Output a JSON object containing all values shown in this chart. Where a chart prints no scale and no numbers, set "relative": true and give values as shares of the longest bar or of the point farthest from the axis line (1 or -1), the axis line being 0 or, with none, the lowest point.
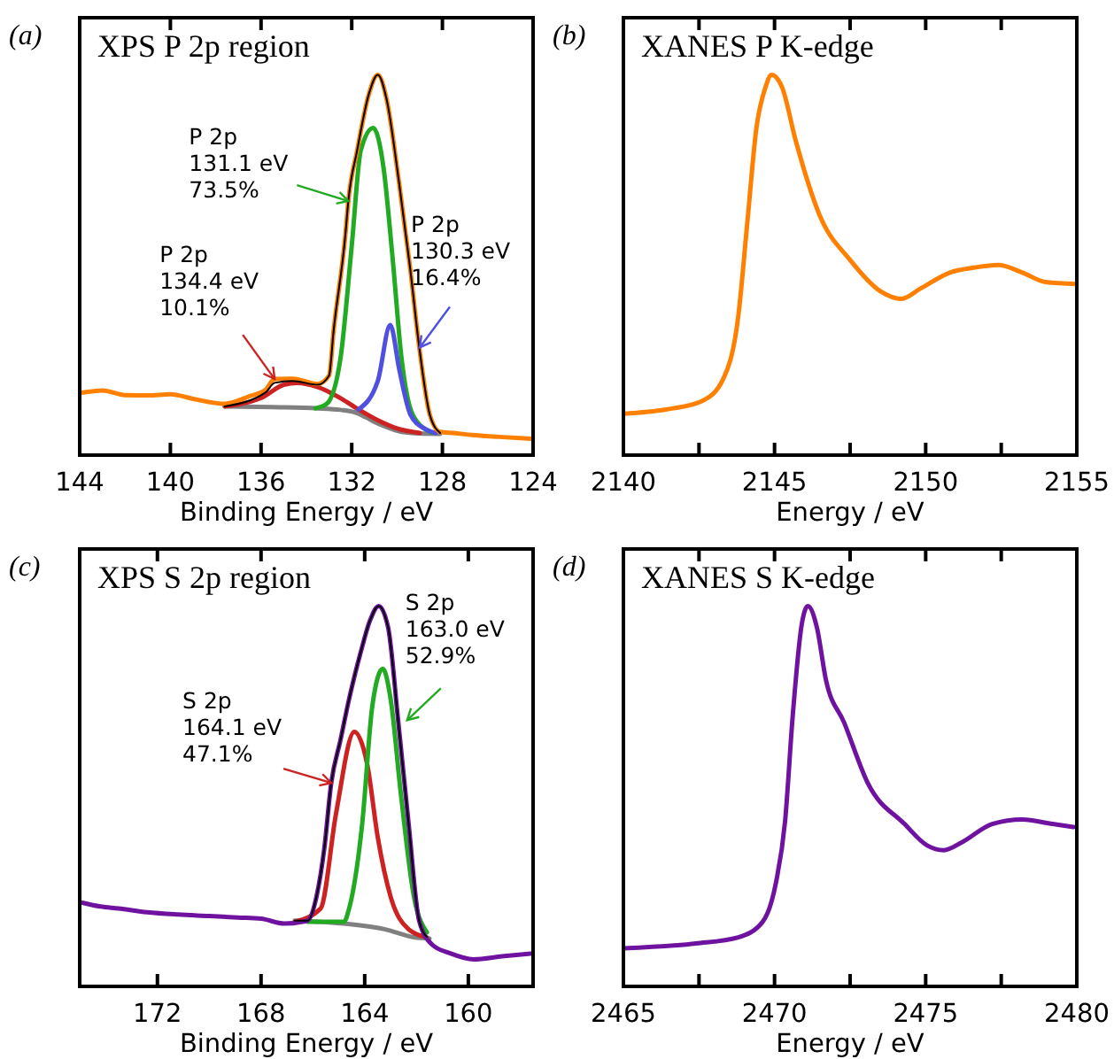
{
  "chart_data": [
    {
      "type": "line",
      "title": "XPS P 2p region",
      "xlabel": "Binding Energy / eV",
      "relative": true,
      "tick_labels": "x",
      "xlim": [
        144,
        124
      ],
      "xticks": [
        144,
        140,
        136,
        132,
        128,
        124
      ],
      "annotations": [
        "(a)",
        {
          "text": "P 2p\n131.1 eV\n73.5%",
          "x": 132.15,
          "y": 0.668
        },
        {
          "text": "P 2p\n130.3 eV\n16.4%",
          "x": 129.0,
          "y": 0.283
        },
        {
          "text": "P 2p\n134.4 eV\n10.1%",
          "x": 135.4,
          "y": 0.2
        }
      ],
      "series": [
        {
          "color": "#808080",
          "x": [
            137.6,
            135.5,
            133.5,
            132.5,
            131.9,
            131.4,
            130.85,
            130.3,
            129.8,
            129.0,
            128.1
          ],
          "values": [
            0.128,
            0.126,
            0.123,
            0.119,
            0.113,
            0.1,
            0.083,
            0.07,
            0.061,
            0.057,
            0.056
          ]
        },
        {
          "color": "#cc2222",
          "x": [
            137.6,
            136.5,
            136,
            135,
            134.4,
            133.5,
            132.5,
            131.7,
            130.8,
            130,
            129
          ],
          "values": [
            0.128,
            0.14,
            0.15,
            0.185,
            0.19,
            0.179,
            0.15,
            0.12,
            0.09,
            0.07,
            0.058
          ]
        },
        {
          "color": "#22aa22",
          "x": [
            133.6,
            133.1,
            132.5,
            132.0,
            131.6,
            131.05,
            130.6,
            130.2,
            129.8,
            129.3,
            128.5
          ],
          "values": [
            0.123,
            0.135,
            0.253,
            0.55,
            0.801,
            0.86,
            0.757,
            0.52,
            0.253,
            0.105,
            0.06
          ]
        },
        {
          "color": "#5050e0",
          "x": [
            131.7,
            130.85,
            130.3,
            129.9,
            129.4,
            128.8,
            128.3
          ],
          "values": [
            0.12,
            0.195,
            0.342,
            0.224,
            0.105,
            0.07,
            0.058
          ]
        },
        {
          "color": "#ff8000",
          "x": [
            143.9,
            143.0,
            142.0,
            141.0,
            140.0,
            139.0,
            137.6,
            136.5,
            135.8,
            135.4,
            134.6,
            133.5,
            133.0,
            132.8,
            132.28,
            132.15,
            131.76,
            131.24,
            130.85,
            130.46,
            129.92,
            129.42,
            129.02,
            128.55,
            128.1,
            127.5,
            126.7,
            125.5,
            124.1
          ],
          "values": [
            0.164,
            0.17,
            0.158,
            0.157,
            0.16,
            0.148,
            0.135,
            0.155,
            0.172,
            0.2,
            0.201,
            0.187,
            0.209,
            0.327,
            0.579,
            0.668,
            0.801,
            0.95,
            1.0,
            0.935,
            0.72,
            0.49,
            0.283,
            0.105,
            0.061,
            0.058,
            0.053,
            0.048,
            0.043
          ]
        },
        {
          "color": "#000000",
          "x": [
            137.6,
            135.8,
            135.4,
            134.6,
            133.5,
            133.0,
            132.8,
            132.28,
            132.15,
            131.76,
            131.24,
            130.85,
            130.46,
            129.92,
            129.42,
            129.02,
            128.55,
            128.1
          ],
          "values": [
            0.128,
            0.165,
            0.19,
            0.195,
            0.185,
            0.209,
            0.327,
            0.579,
            0.668,
            0.801,
            0.95,
            1.0,
            0.935,
            0.72,
            0.49,
            0.283,
            0.105,
            0.058
          ]
        }
      ]
    },
    {
      "type": "line",
      "title": "XANES P K-edge",
      "xlabel": "Energy / eV",
      "relative": true,
      "tick_labels": "x",
      "xlim": [
        2140,
        2155
      ],
      "xticks": [
        2140,
        {
          "value": 2142.5,
          "label": null
        },
        2145,
        {
          "value": 2147.5,
          "label": null
        },
        2150,
        {
          "value": 2152.5,
          "label": null
        },
        2155
      ],
      "annotations": [
        "(b)"
      ],
      "series": [
        {
          "color": "#ff8000",
          "x": [
            2140,
            2141.4,
            2142.6,
            2143.3,
            2143.8,
            2144.1,
            2144.4,
            2144.7,
            2144.9,
            2145.25,
            2145.7,
            2146.5,
            2147.5,
            2148.5,
            2149.2,
            2149.85,
            2150.8,
            2151.6,
            2152.4,
            2153.2,
            2153.96,
            2155
          ],
          "values": [
            0.109,
            0.12,
            0.142,
            0.2,
            0.365,
            0.612,
            0.86,
            0.967,
            1.0,
            0.967,
            0.827,
            0.629,
            0.513,
            0.431,
            0.411,
            0.439,
            0.48,
            0.493,
            0.5,
            0.48,
            0.455,
            0.45
          ]
        }
      ]
    },
    {
      "type": "line",
      "title": "XPS S 2p region",
      "xlabel": "Binding Energy / eV",
      "relative": true,
      "tick_labels": "x",
      "xlim": [
        175,
        157.5
      ],
      "xticks": [
        172,
        168,
        164,
        160
      ],
      "annotations": [
        "(c)",
        {
          "text": "S 2p\n163.0 eV\n52.9%",
          "x": 162.36,
          "y": 0.7
        },
        {
          "text": "S 2p\n164.1 eV\n47.1%",
          "x": 165.29,
          "y": 0.535
        }
      ],
      "series": [
        {
          "color": "#808080",
          "x": [
            166.7,
            164.8,
            163.2,
            162.1,
            161.5
          ],
          "values": [
            0.173,
            0.165,
            0.15,
            0.129,
            0.126
          ]
        },
        {
          "color": "#cc2222",
          "x": [
            166.7,
            165.7,
            165.1,
            164.4,
            163.9,
            163.5,
            163.0,
            162.3,
            161.6
          ],
          "values": [
            0.17,
            0.205,
            0.457,
            0.669,
            0.583,
            0.394,
            0.236,
            0.15,
            0.129
          ]
        },
        {
          "color": "#22aa22",
          "x": [
            166.2,
            164.8,
            164.6,
            164.1,
            163.7,
            163.3,
            163.0,
            162.6,
            162.1,
            161.6
          ],
          "values": [
            0.17,
            0.17,
            0.205,
            0.425,
            0.74,
            0.835,
            0.756,
            0.504,
            0.236,
            0.142
          ]
        },
        {
          "color": "#7012a0",
          "x": [
            174.9,
            174.2,
            173.5,
            172.4,
            171.2,
            170.0,
            168.9,
            168.0,
            167.1,
            166.4,
            166.2,
            165.86,
            165.56,
            165.29,
            164.94,
            164.6,
            164.14,
            163.8,
            163.46,
            163.1,
            162.7,
            162.3,
            161.9,
            161.4,
            160.7,
            159.8,
            158.7,
            157.5
          ],
          "values": [
            0.22,
            0.21,
            0.205,
            0.195,
            0.189,
            0.185,
            0.181,
            0.178,
            0.165,
            0.17,
            0.173,
            0.236,
            0.362,
            0.535,
            0.646,
            0.756,
            0.882,
            0.961,
            1.0,
            0.945,
            0.693,
            0.425,
            0.173,
            0.11,
            0.087,
            0.071,
            0.079,
            0.087
          ]
        },
        {
          "color": "#000000",
          "x": [
            166.7,
            166.2,
            165.86,
            165.56,
            165.29,
            164.94,
            164.6,
            164.14,
            163.8,
            163.46,
            163.1,
            162.7,
            162.3,
            161.9,
            161.6
          ],
          "values": [
            0.173,
            0.173,
            0.236,
            0.362,
            0.535,
            0.646,
            0.756,
            0.882,
            0.961,
            1.0,
            0.945,
            0.693,
            0.425,
            0.173,
            0.13
          ]
        }
      ]
    },
    {
      "type": "line",
      "title": "XANES S K-edge",
      "xlabel": "Energy / eV",
      "relative": true,
      "tick_labels": "x",
      "xlim": [
        2465,
        2480
      ],
      "xticks": [
        2465,
        {
          "value": 2467.5,
          "label": null
        },
        2470,
        {
          "value": 2472.5,
          "label": null
        },
        2475,
        {
          "value": 2477.5,
          "label": null
        },
        2480
      ],
      "annotations": [
        "(d)"
      ],
      "series": [
        {
          "color": "#7012a0",
          "x": [
            2465,
            2467.4,
            2468.8,
            2469.6,
            2470.05,
            2470.35,
            2470.6,
            2470.9,
            2471.1,
            2471.4,
            2471.7,
            2472.3,
            2473.1,
            2474.3,
            2475.04,
            2475.6,
            2476.2,
            2477.2,
            2478.2,
            2479.2,
            2479.9
          ],
          "values": [
            0.1,
            0.113,
            0.129,
            0.169,
            0.274,
            0.435,
            0.71,
            0.952,
            1.0,
            0.944,
            0.806,
            0.694,
            0.532,
            0.427,
            0.371,
            0.358,
            0.379,
            0.427,
            0.439,
            0.427,
            0.419
          ]
        }
      ]
    }
  ]
}
